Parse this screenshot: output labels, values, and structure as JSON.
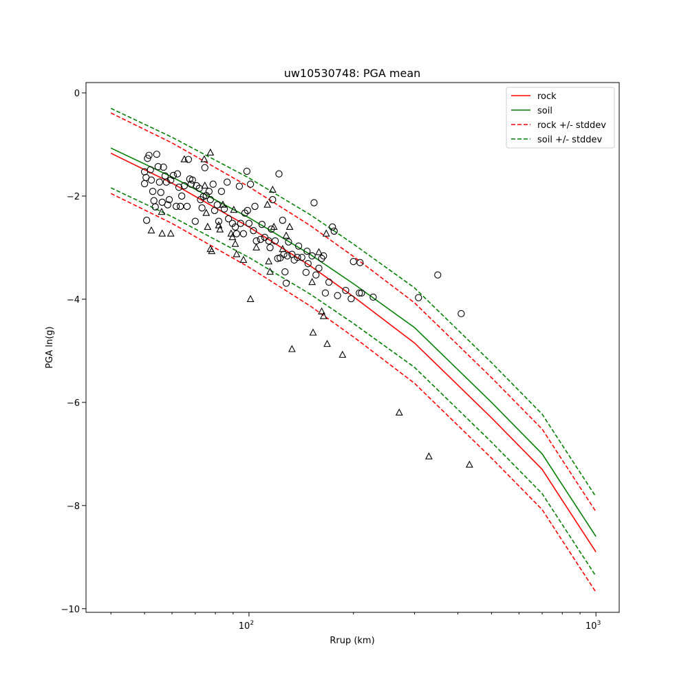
{
  "chart_data": {
    "type": "scatter",
    "title": "uw10530748: PGA mean",
    "xlabel": "Rrup (km)",
    "ylabel": "PGA ln(g)",
    "xscale": "log",
    "xlim": [
      33.9,
      1167
    ],
    "ylim": [
      -10.07,
      0.2
    ],
    "x_ticks": [
      {
        "value": 100,
        "base": "10",
        "exp": "2"
      },
      {
        "value": 1000,
        "base": "10",
        "exp": "3"
      }
    ],
    "x_minor_ticks": [
      40,
      50,
      60,
      70,
      80,
      90,
      200,
      300,
      400,
      500,
      600,
      700,
      800,
      900
    ],
    "y_ticks": [
      {
        "value": 0,
        "label": "0"
      },
      {
        "value": -2,
        "label": "−2"
      },
      {
        "value": -4,
        "label": "−4"
      },
      {
        "value": -6,
        "label": "−6"
      },
      {
        "value": -8,
        "label": "−8"
      },
      {
        "value": -10,
        "label": "−10"
      }
    ],
    "grid": false,
    "legend_position": "top-right",
    "lines": [
      {
        "name": "rock",
        "color": "#ff0000",
        "style": "solid",
        "x": [
          40,
          60,
          100,
          150,
          200,
          300,
          500,
          700,
          800,
          1000
        ],
        "y": [
          -1.17,
          -1.75,
          -2.6,
          -3.35,
          -3.95,
          -4.85,
          -6.3,
          -7.3,
          -7.9,
          -8.9
        ]
      },
      {
        "name": "soil",
        "color": "#008000",
        "style": "solid",
        "x": [
          40,
          60,
          100,
          150,
          200,
          300,
          500,
          700,
          800,
          1000
        ],
        "y": [
          -1.07,
          -1.63,
          -2.42,
          -3.13,
          -3.7,
          -4.55,
          -6.0,
          -7.0,
          -7.6,
          -8.6
        ]
      },
      {
        "name": "rock +/- stddev",
        "color": "#ff0000",
        "style": "dashed",
        "base": "rock",
        "stddev": 0.78
      },
      {
        "name": "soil +/- stddev",
        "color": "#008000",
        "style": "dashed",
        "base": "soil",
        "stddev": 0.77
      }
    ],
    "scatter": [
      {
        "name": "circles",
        "marker": "circle",
        "points": [
          [
            50,
            -1.53
          ],
          [
            50.5,
            -1.64
          ],
          [
            51,
            -1.27
          ],
          [
            51.5,
            -1.21
          ],
          [
            52,
            -1.49
          ],
          [
            50,
            -1.76
          ],
          [
            50.7,
            -2.47
          ],
          [
            52.3,
            -1.69
          ],
          [
            52.8,
            -1.91
          ],
          [
            53.2,
            -2.09
          ],
          [
            53.7,
            -2.21
          ],
          [
            54.2,
            -1.19
          ],
          [
            54.7,
            -1.43
          ],
          [
            55.2,
            -1.73
          ],
          [
            55.7,
            -1.93
          ],
          [
            56.2,
            -2.12
          ],
          [
            56.7,
            -1.44
          ],
          [
            57.3,
            -1.61
          ],
          [
            57.8,
            -1.73
          ],
          [
            58.3,
            -2.17
          ],
          [
            58.9,
            -2.07
          ],
          [
            59.5,
            -1.69
          ],
          [
            60.5,
            -1.6
          ],
          [
            61.7,
            -2.2
          ],
          [
            62.2,
            -1.57
          ],
          [
            62.8,
            -1.83
          ],
          [
            63.4,
            -2.2
          ],
          [
            64,
            -2.0
          ],
          [
            65.1,
            -1.8
          ],
          [
            66.3,
            -2.2
          ],
          [
            66.9,
            -1.29
          ],
          [
            67.5,
            -1.67
          ],
          [
            68.1,
            -1.77
          ],
          [
            68.7,
            -1.69
          ],
          [
            70,
            -2.49
          ],
          [
            70.6,
            -1.8
          ],
          [
            71.9,
            -1.85
          ],
          [
            72.5,
            -2.07
          ],
          [
            73.2,
            -2.23
          ],
          [
            73.9,
            -2.01
          ],
          [
            74.6,
            -1.45
          ],
          [
            75.3,
            -1.99
          ],
          [
            76.7,
            -1.91
          ],
          [
            77.4,
            -2.07
          ],
          [
            78.8,
            -1.77
          ],
          [
            79.6,
            -2.28
          ],
          [
            81,
            -2.17
          ],
          [
            81.8,
            -2.49
          ],
          [
            83.3,
            -1.91
          ],
          [
            84.9,
            -2.25
          ],
          [
            86.5,
            -1.73
          ],
          [
            87.3,
            -2.44
          ],
          [
            89.6,
            -2.53
          ],
          [
            91.3,
            -2.6
          ],
          [
            92.1,
            -2.73
          ],
          [
            93.8,
            -1.81
          ],
          [
            94.6,
            -2.53
          ],
          [
            96.4,
            -2.73
          ],
          [
            97.3,
            -2.33
          ],
          [
            98.6,
            -1.52
          ],
          [
            99,
            -2.28
          ],
          [
            100,
            -2.53
          ],
          [
            101,
            -1.77
          ],
          [
            103,
            -2.67
          ],
          [
            104,
            -2.2
          ],
          [
            105,
            -2.87
          ],
          [
            108,
            -2.84
          ],
          [
            109,
            -2.55
          ],
          [
            111,
            -2.8
          ],
          [
            114,
            -2.87
          ],
          [
            115,
            -3.0
          ],
          [
            116,
            -2.64
          ],
          [
            117,
            -2.07
          ],
          [
            119,
            -2.87
          ],
          [
            121,
            -3.21
          ],
          [
            122,
            -1.57
          ],
          [
            123,
            -3.2
          ],
          [
            125,
            -2.47
          ],
          [
            126,
            -3.13
          ],
          [
            127,
            -3.47
          ],
          [
            128,
            -3.69
          ],
          [
            129,
            -3.16
          ],
          [
            130,
            -2.89
          ],
          [
            133,
            -3.13
          ],
          [
            135,
            -3.24
          ],
          [
            138,
            -3.19
          ],
          [
            139,
            -2.97
          ],
          [
            142,
            -3.19
          ],
          [
            146,
            -3.48
          ],
          [
            147,
            -3.07
          ],
          [
            148,
            -3.31
          ],
          [
            152,
            -3.16
          ],
          [
            154,
            -2.13
          ],
          [
            156,
            -3.53
          ],
          [
            159,
            -3.4
          ],
          [
            162,
            -3.21
          ],
          [
            164,
            -3.16
          ],
          [
            166,
            -3.88
          ],
          [
            170,
            -3.67
          ],
          [
            174,
            -2.6
          ],
          [
            176,
            -2.68
          ],
          [
            180,
            -3.93
          ],
          [
            190,
            -3.83
          ],
          [
            197,
            -3.99
          ],
          [
            200,
            -3.27
          ],
          [
            208,
            -3.88
          ],
          [
            211,
            -3.88
          ],
          [
            209,
            -3.29
          ],
          [
            228,
            -3.96
          ],
          [
            308,
            -3.97
          ],
          [
            350,
            -3.53
          ],
          [
            409,
            -4.28
          ]
        ]
      },
      {
        "name": "triangles",
        "marker": "triangle",
        "points": [
          [
            52.3,
            -2.67
          ],
          [
            56,
            -2.31
          ],
          [
            56.2,
            -2.73
          ],
          [
            59.5,
            -2.73
          ],
          [
            65.1,
            -1.29
          ],
          [
            74.3,
            -1.29
          ],
          [
            77.4,
            -1.16
          ],
          [
            74.6,
            -1.8
          ],
          [
            75.3,
            -2.33
          ],
          [
            76,
            -2.6
          ],
          [
            77.4,
            -3.03
          ],
          [
            78.1,
            -3.07
          ],
          [
            81.8,
            -2.57
          ],
          [
            82.5,
            -2.65
          ],
          [
            84.1,
            -2.17
          ],
          [
            89.6,
            -2.8
          ],
          [
            90.4,
            -2.27
          ],
          [
            91.3,
            -2.93
          ],
          [
            92.1,
            -3.13
          ],
          [
            96.4,
            -3.24
          ],
          [
            88.8,
            -2.73
          ],
          [
            101,
            -4.0
          ],
          [
            105,
            -3.0
          ],
          [
            114,
            -3.27
          ],
          [
            115,
            -3.47
          ],
          [
            117,
            -1.88
          ],
          [
            113,
            -2.17
          ],
          [
            118,
            -2.6
          ],
          [
            125,
            -3.03
          ],
          [
            128,
            -2.77
          ],
          [
            131,
            -2.6
          ],
          [
            133,
            -4.97
          ],
          [
            153,
            -4.65
          ],
          [
            152,
            -3.67
          ],
          [
            159,
            -3.09
          ],
          [
            162,
            -4.24
          ],
          [
            164,
            -4.33
          ],
          [
            167,
            -2.73
          ],
          [
            168,
            -4.87
          ],
          [
            186,
            -5.08
          ],
          [
            271,
            -6.2
          ],
          [
            330,
            -7.05
          ],
          [
            432,
            -7.21
          ]
        ]
      }
    ]
  }
}
